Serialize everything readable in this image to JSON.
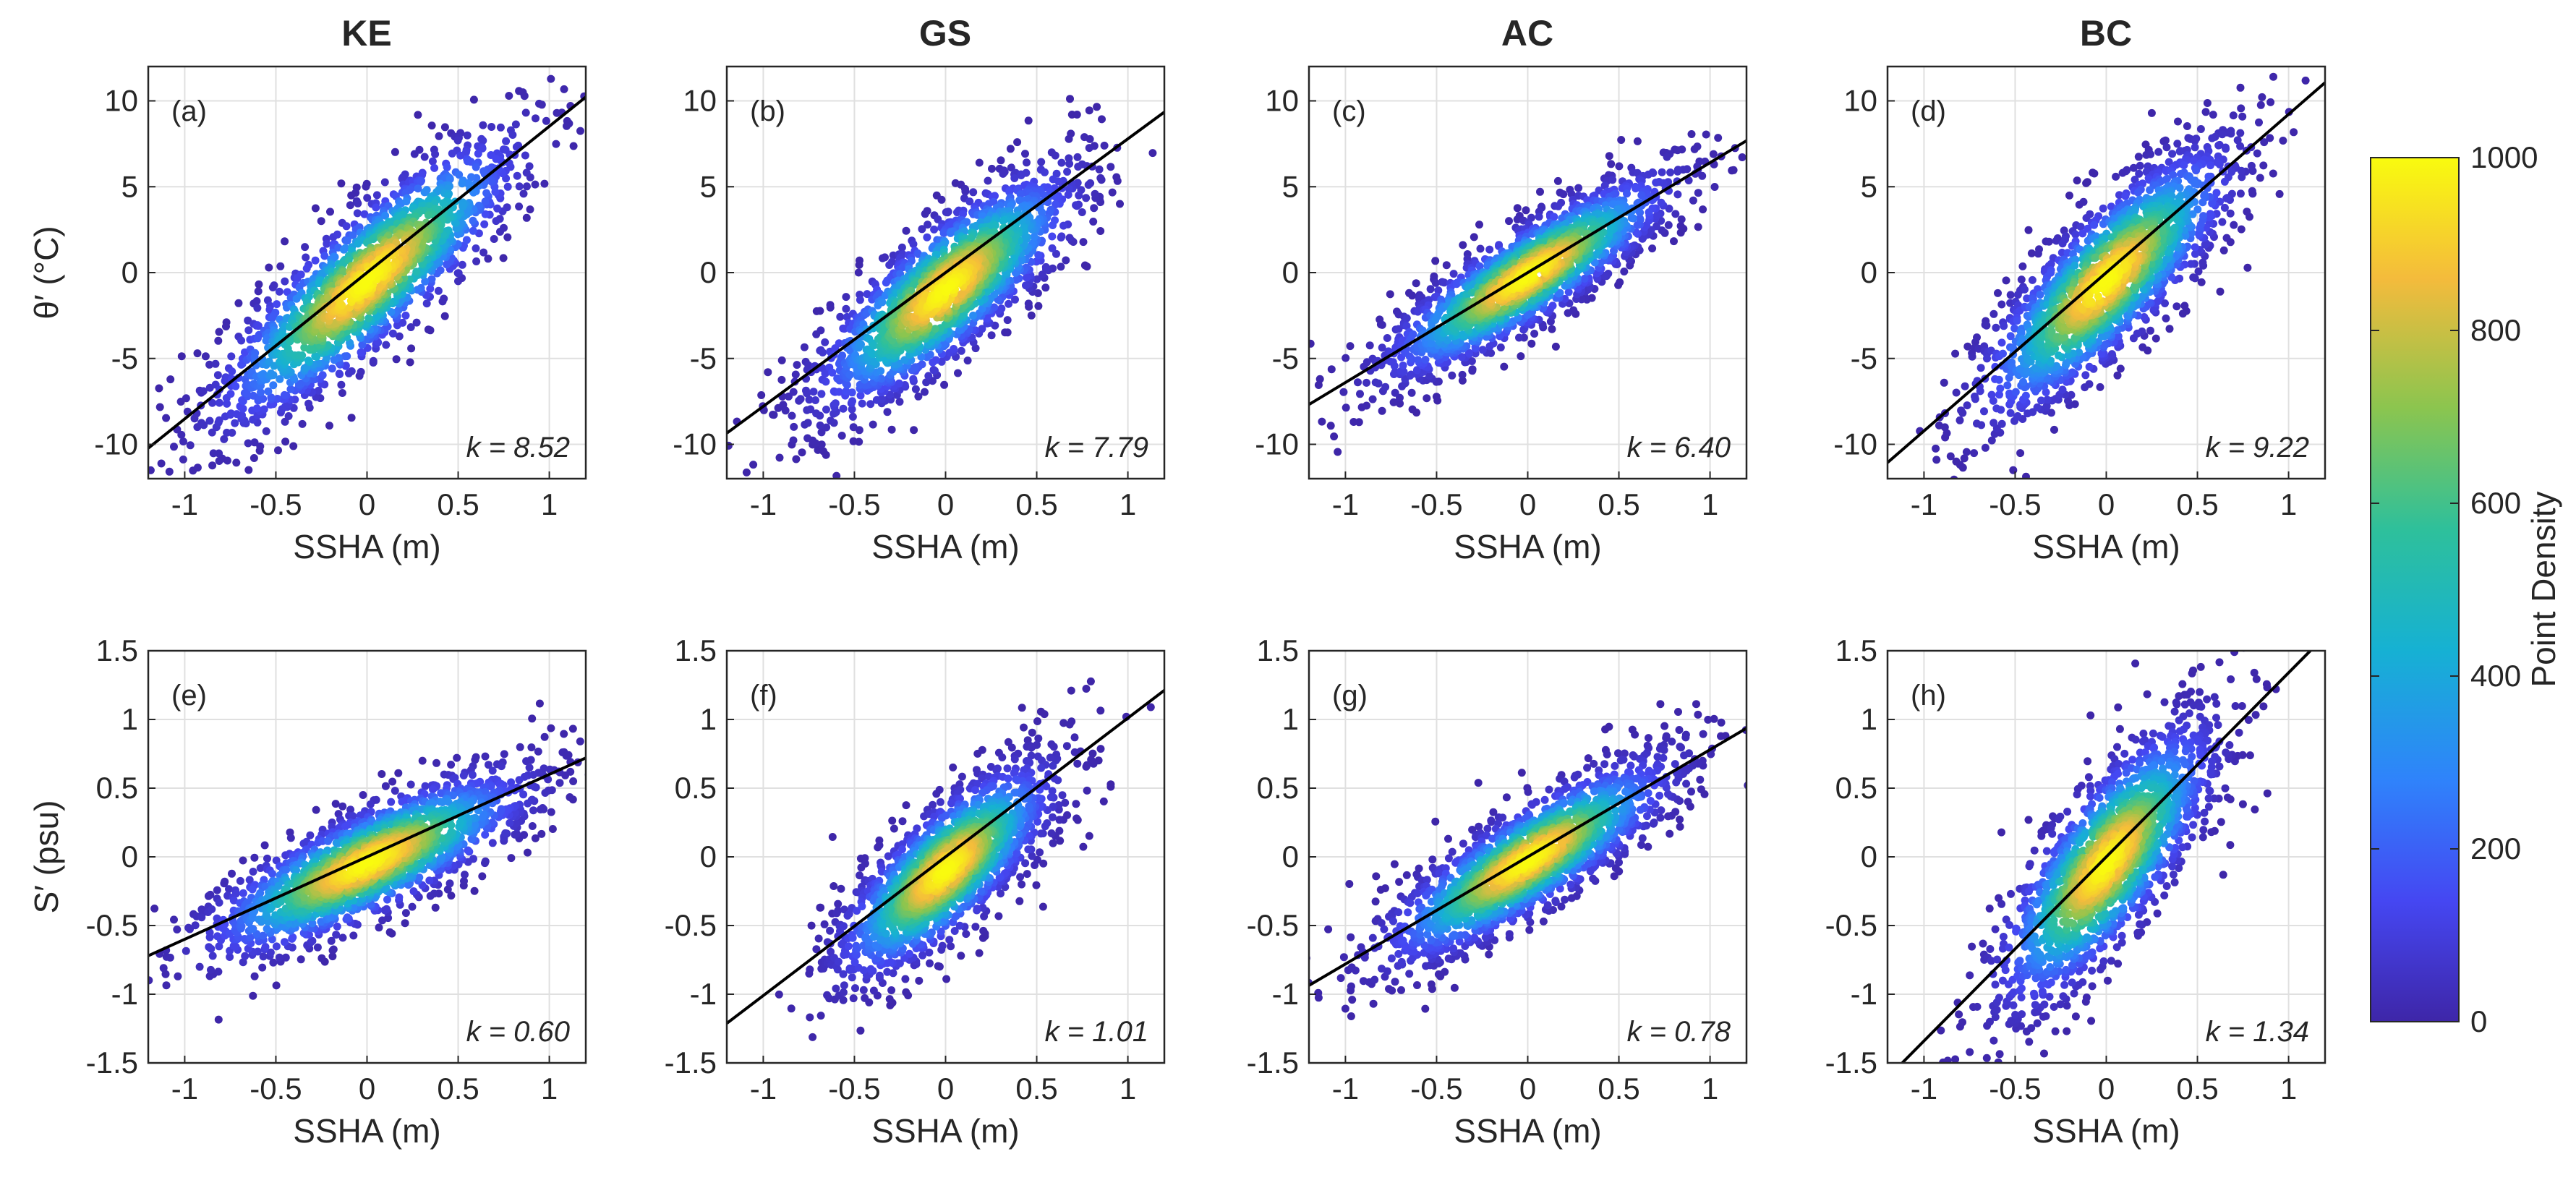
{
  "figure": {
    "columns": [
      "KE",
      "GS",
      "AC",
      "BC"
    ],
    "colorbar": {
      "label": "Point Density",
      "min": 0,
      "max": 1000,
      "ticks": [
        "0",
        "200",
        "400",
        "600",
        "800",
        "1000"
      ],
      "colormap": "parula"
    }
  },
  "chart_data": [
    {
      "type": "scatter",
      "panel": "(a)",
      "region": "KE",
      "xlabel": "SSHA (m)",
      "ylabel": "θ′ (°C)",
      "xlim": [
        -1.2,
        1.2
      ],
      "ylim": [
        -12,
        12
      ],
      "xticks": [
        "-1",
        "-0.5",
        "0",
        "0.5",
        "1"
      ],
      "yticks": [
        "-10",
        "-5",
        "0",
        "5",
        "10"
      ],
      "k_label": "k = 8.52",
      "slope": 8.52,
      "intercept": -0.5,
      "spread": 2.2,
      "core_halfwidth": 0.42,
      "grid": true
    },
    {
      "type": "scatter",
      "panel": "(b)",
      "region": "GS",
      "xlabel": "SSHA (m)",
      "ylabel": "",
      "xlim": [
        -1.2,
        1.2
      ],
      "ylim": [
        -12,
        12
      ],
      "xticks": [
        "-1",
        "-0.5",
        "0",
        "0.5",
        "1"
      ],
      "yticks": [
        "-10",
        "-5",
        "0",
        "5",
        "10"
      ],
      "k_label": "k = 7.79",
      "slope": 7.79,
      "intercept": -1.0,
      "spread": 2.1,
      "core_halfwidth": 0.36,
      "grid": true
    },
    {
      "type": "scatter",
      "panel": "(c)",
      "region": "AC",
      "xlabel": "SSHA (m)",
      "ylabel": "",
      "xlim": [
        -1.2,
        1.2
      ],
      "ylim": [
        -12,
        12
      ],
      "xticks": [
        "-1",
        "-0.5",
        "0",
        "0.5",
        "1"
      ],
      "yticks": [
        "-10",
        "-5",
        "0",
        "5",
        "10"
      ],
      "k_label": "k = 6.40",
      "slope": 6.4,
      "intercept": -0.2,
      "spread": 1.5,
      "core_halfwidth": 0.4,
      "grid": true
    },
    {
      "type": "scatter",
      "panel": "(d)",
      "region": "BC",
      "xlabel": "SSHA (m)",
      "ylabel": "",
      "xlim": [
        -1.2,
        1.2
      ],
      "ylim": [
        -12,
        12
      ],
      "xticks": [
        "-1",
        "-0.5",
        "0",
        "0.5",
        "1"
      ],
      "yticks": [
        "-10",
        "-5",
        "0",
        "5",
        "10"
      ],
      "k_label": "k = 9.22",
      "slope": 9.22,
      "intercept": -0.5,
      "spread": 2.3,
      "core_halfwidth": 0.35,
      "grid": true
    },
    {
      "type": "scatter",
      "panel": "(e)",
      "region": "KE",
      "xlabel": "SSHA (m)",
      "ylabel": "S′ (psu)",
      "xlim": [
        -1.2,
        1.2
      ],
      "ylim": [
        -1.5,
        1.5
      ],
      "xticks": [
        "-1",
        "-0.5",
        "0",
        "0.5",
        "1"
      ],
      "yticks": [
        "-1.5",
        "-1",
        "-0.5",
        "0",
        "0.5",
        "1",
        "1.5"
      ],
      "k_label": "k = 0.60",
      "slope": 0.6,
      "intercept": -0.05,
      "spread": 0.2,
      "core_halfwidth": 0.45,
      "grid": true
    },
    {
      "type": "scatter",
      "panel": "(f)",
      "region": "GS",
      "xlabel": "SSHA (m)",
      "ylabel": "",
      "xlim": [
        -1.2,
        1.2
      ],
      "ylim": [
        -1.5,
        1.5
      ],
      "xticks": [
        "-1",
        "-0.5",
        "0",
        "0.5",
        "1"
      ],
      "yticks": [
        "-1.5",
        "-1",
        "-0.5",
        "0",
        "0.5",
        "1",
        "1.5"
      ],
      "k_label": "k = 1.01",
      "slope": 1.01,
      "intercept": -0.1,
      "spread": 0.25,
      "core_halfwidth": 0.3,
      "grid": true
    },
    {
      "type": "scatter",
      "panel": "(g)",
      "region": "AC",
      "xlabel": "SSHA (m)",
      "ylabel": "",
      "xlim": [
        -1.2,
        1.2
      ],
      "ylim": [
        -1.5,
        1.5
      ],
      "xticks": [
        "-1",
        "-0.5",
        "0",
        "0.5",
        "1"
      ],
      "yticks": [
        "-1.5",
        "-1",
        "-0.5",
        "0",
        "0.5",
        "1",
        "1.5"
      ],
      "k_label": "k = 0.78",
      "slope": 0.78,
      "intercept": -0.03,
      "spread": 0.2,
      "core_halfwidth": 0.4,
      "grid": true
    },
    {
      "type": "scatter",
      "panel": "(h)",
      "region": "BC",
      "xlabel": "SSHA (m)",
      "ylabel": "",
      "xlim": [
        -1.2,
        1.2
      ],
      "ylim": [
        -1.5,
        1.5
      ],
      "xticks": [
        "-1",
        "-0.5",
        "0",
        "0.5",
        "1"
      ],
      "yticks": [
        "-1.5",
        "-1",
        "-0.5",
        "0",
        "0.5",
        "1",
        "1.5"
      ],
      "k_label": "k = 1.34",
      "slope": 1.34,
      "intercept": -0.05,
      "spread": 0.33,
      "core_halfwidth": 0.3,
      "grid": true
    }
  ]
}
